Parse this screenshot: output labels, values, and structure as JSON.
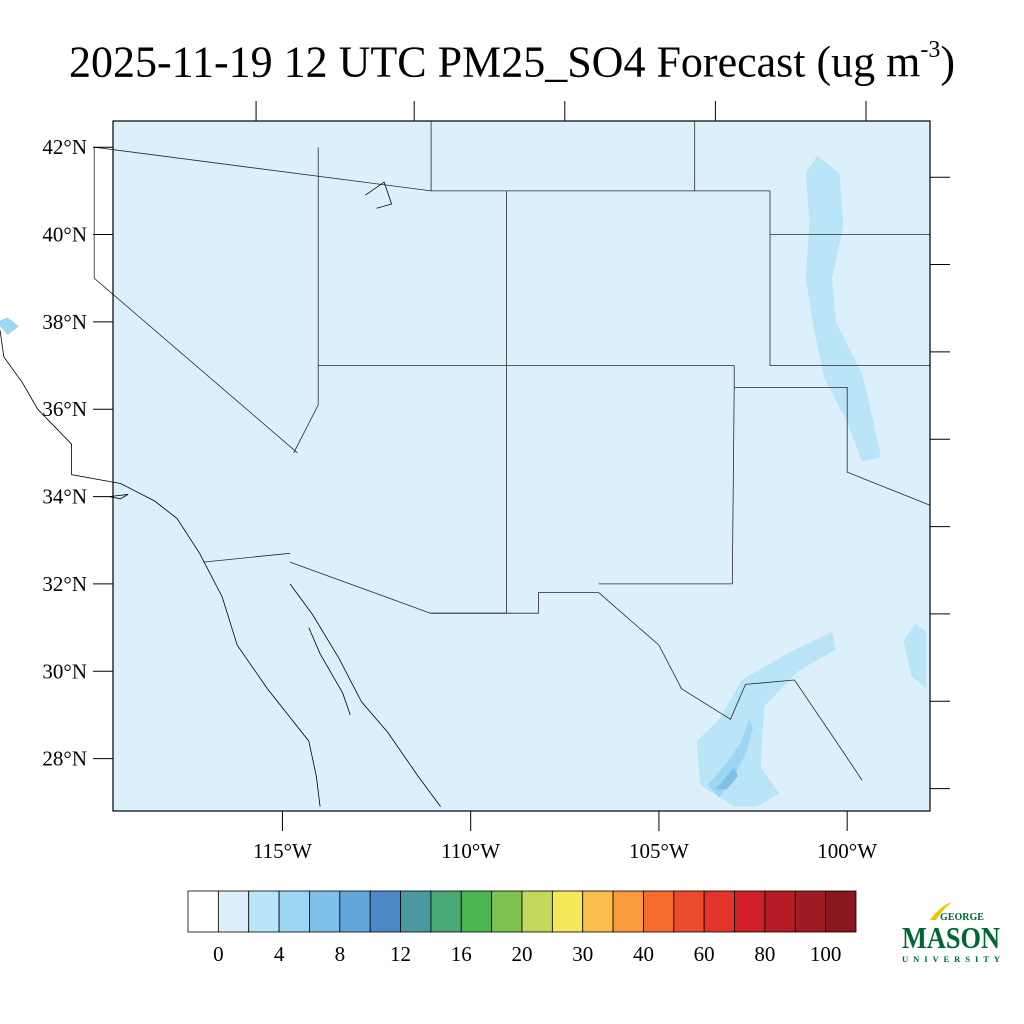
{
  "title": {
    "main": "2025-11-19 12 UTC PM25_SO4 Forecast (ug m",
    "exponent": "-3",
    "close": ")"
  },
  "map": {
    "field": "PM25_SO4",
    "valid_time": "2025-11-19 12 UTC",
    "units": "ug m-3",
    "lon_range": [
      -119.5,
      -97.8
    ],
    "lat_range": [
      26.8,
      42.6
    ],
    "lat_ticks": [
      "42°N",
      "40°N",
      "38°N",
      "36°N",
      "34°N",
      "32°N",
      "30°N",
      "28°N"
    ],
    "lon_ticks": [
      "115°W",
      "110°W",
      "105°W",
      "100°W"
    ],
    "background_level": "0-2",
    "background_color": "#dcf0fb",
    "features": [
      {
        "name": "great-plains-sulfate-band",
        "region": "eastern Colorado / western Kansas",
        "level": "2-4"
      },
      {
        "name": "texas-border-plume",
        "region": "Big Bend / Rio Grande",
        "level": "2-10"
      },
      {
        "name": "san-francisco-bay-spot",
        "region": "central California coast",
        "level": "2-6"
      }
    ]
  },
  "colorbar": {
    "colors": [
      "#ffffff",
      "#dcf0fb",
      "#bae4f7",
      "#9dd6f3",
      "#7fc0e9",
      "#62a6da",
      "#4b8ac9",
      "#4b9aa0",
      "#49a876",
      "#4bb64f",
      "#7dc24f",
      "#c1d85a",
      "#f7e75a",
      "#fbbd4c",
      "#f89a3e",
      "#f46d2d",
      "#ec4b2a",
      "#e23428",
      "#d11f2a",
      "#b71c26",
      "#a01a24",
      "#8a1620"
    ],
    "labels": [
      "0",
      "4",
      "8",
      "12",
      "16",
      "20",
      "30",
      "40",
      "60",
      "80",
      "100"
    ]
  },
  "logo": {
    "line1": "GEORGE",
    "line2": "MASON",
    "line3": "UNIVERSITY",
    "color": "#006633",
    "accent": "#f2c200"
  }
}
